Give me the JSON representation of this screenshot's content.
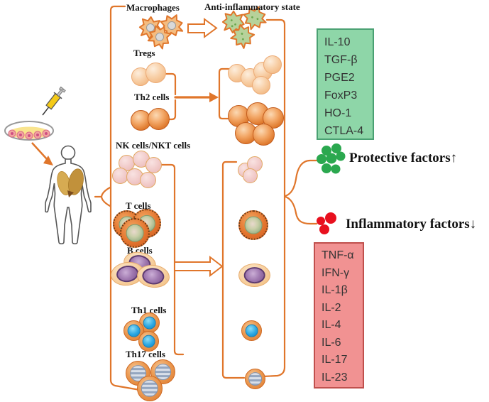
{
  "source_panel": {
    "icons": [
      "syringe-icon",
      "petri-dish-icon",
      "injection-arrow-icon",
      "human-body-icon"
    ]
  },
  "cell_groups": {
    "macrophages": {
      "label": "Macrophages"
    },
    "anti_inflammatory": {
      "label": "Anti-inflammatory state"
    },
    "tregs": {
      "label": "Tregs"
    },
    "th2": {
      "label": "Th2 cells"
    },
    "nk": {
      "label": "NK cells/NKT cells"
    },
    "t": {
      "label": "T cells"
    },
    "b": {
      "label": "B cells"
    },
    "th1": {
      "label": "Th1 cells"
    },
    "th17": {
      "label": "Th17 cells"
    }
  },
  "outcomes": {
    "protective": {
      "title": "Protective factors↑",
      "factors": [
        "IL-10",
        "TGF-β",
        "PGE2",
        "FoxP3",
        "HO-1",
        "CTLA-4"
      ]
    },
    "inflammatory": {
      "title": "Inflammatory factors↓",
      "factors": [
        "TNF-α",
        "IFN-γ",
        "IL-1β",
        "IL-2",
        "IL-4",
        "IL-6",
        "IL-17",
        "IL-23"
      ]
    }
  },
  "colors": {
    "connector": "#e0762b",
    "protective_box_fill": "#8ed6a8",
    "protective_box_border": "#4aa173",
    "inflammatory_box_fill": "#f19292",
    "inflammatory_box_border": "#c0504d",
    "protective_icon": "#2ba84f",
    "inflammatory_icon": "#e8101e"
  }
}
